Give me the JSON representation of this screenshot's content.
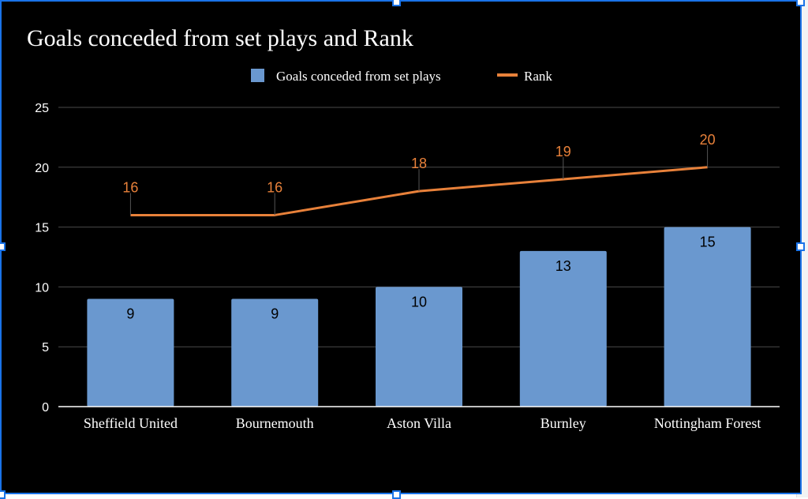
{
  "chart_data": {
    "type": "bar",
    "title": "Goals conceded from set plays and Rank",
    "categories": [
      "Sheffield United",
      "Bournemouth",
      "Aston Villa",
      "Burnley",
      "Nottingham Forest"
    ],
    "series": [
      {
        "name": "Goals conceded from set plays",
        "type": "bar",
        "values": [
          9,
          9,
          10,
          13,
          15
        ],
        "color": "#6a98cf"
      },
      {
        "name": "Rank",
        "type": "line",
        "values": [
          16,
          16,
          18,
          19,
          20
        ],
        "color": "#e8813a"
      }
    ],
    "ylim": [
      0,
      25
    ],
    "yticks": [
      0,
      5,
      10,
      15,
      20,
      25
    ],
    "xlabel": "",
    "ylabel": "",
    "grid": true,
    "legend": "top-center",
    "background": "#000000"
  }
}
